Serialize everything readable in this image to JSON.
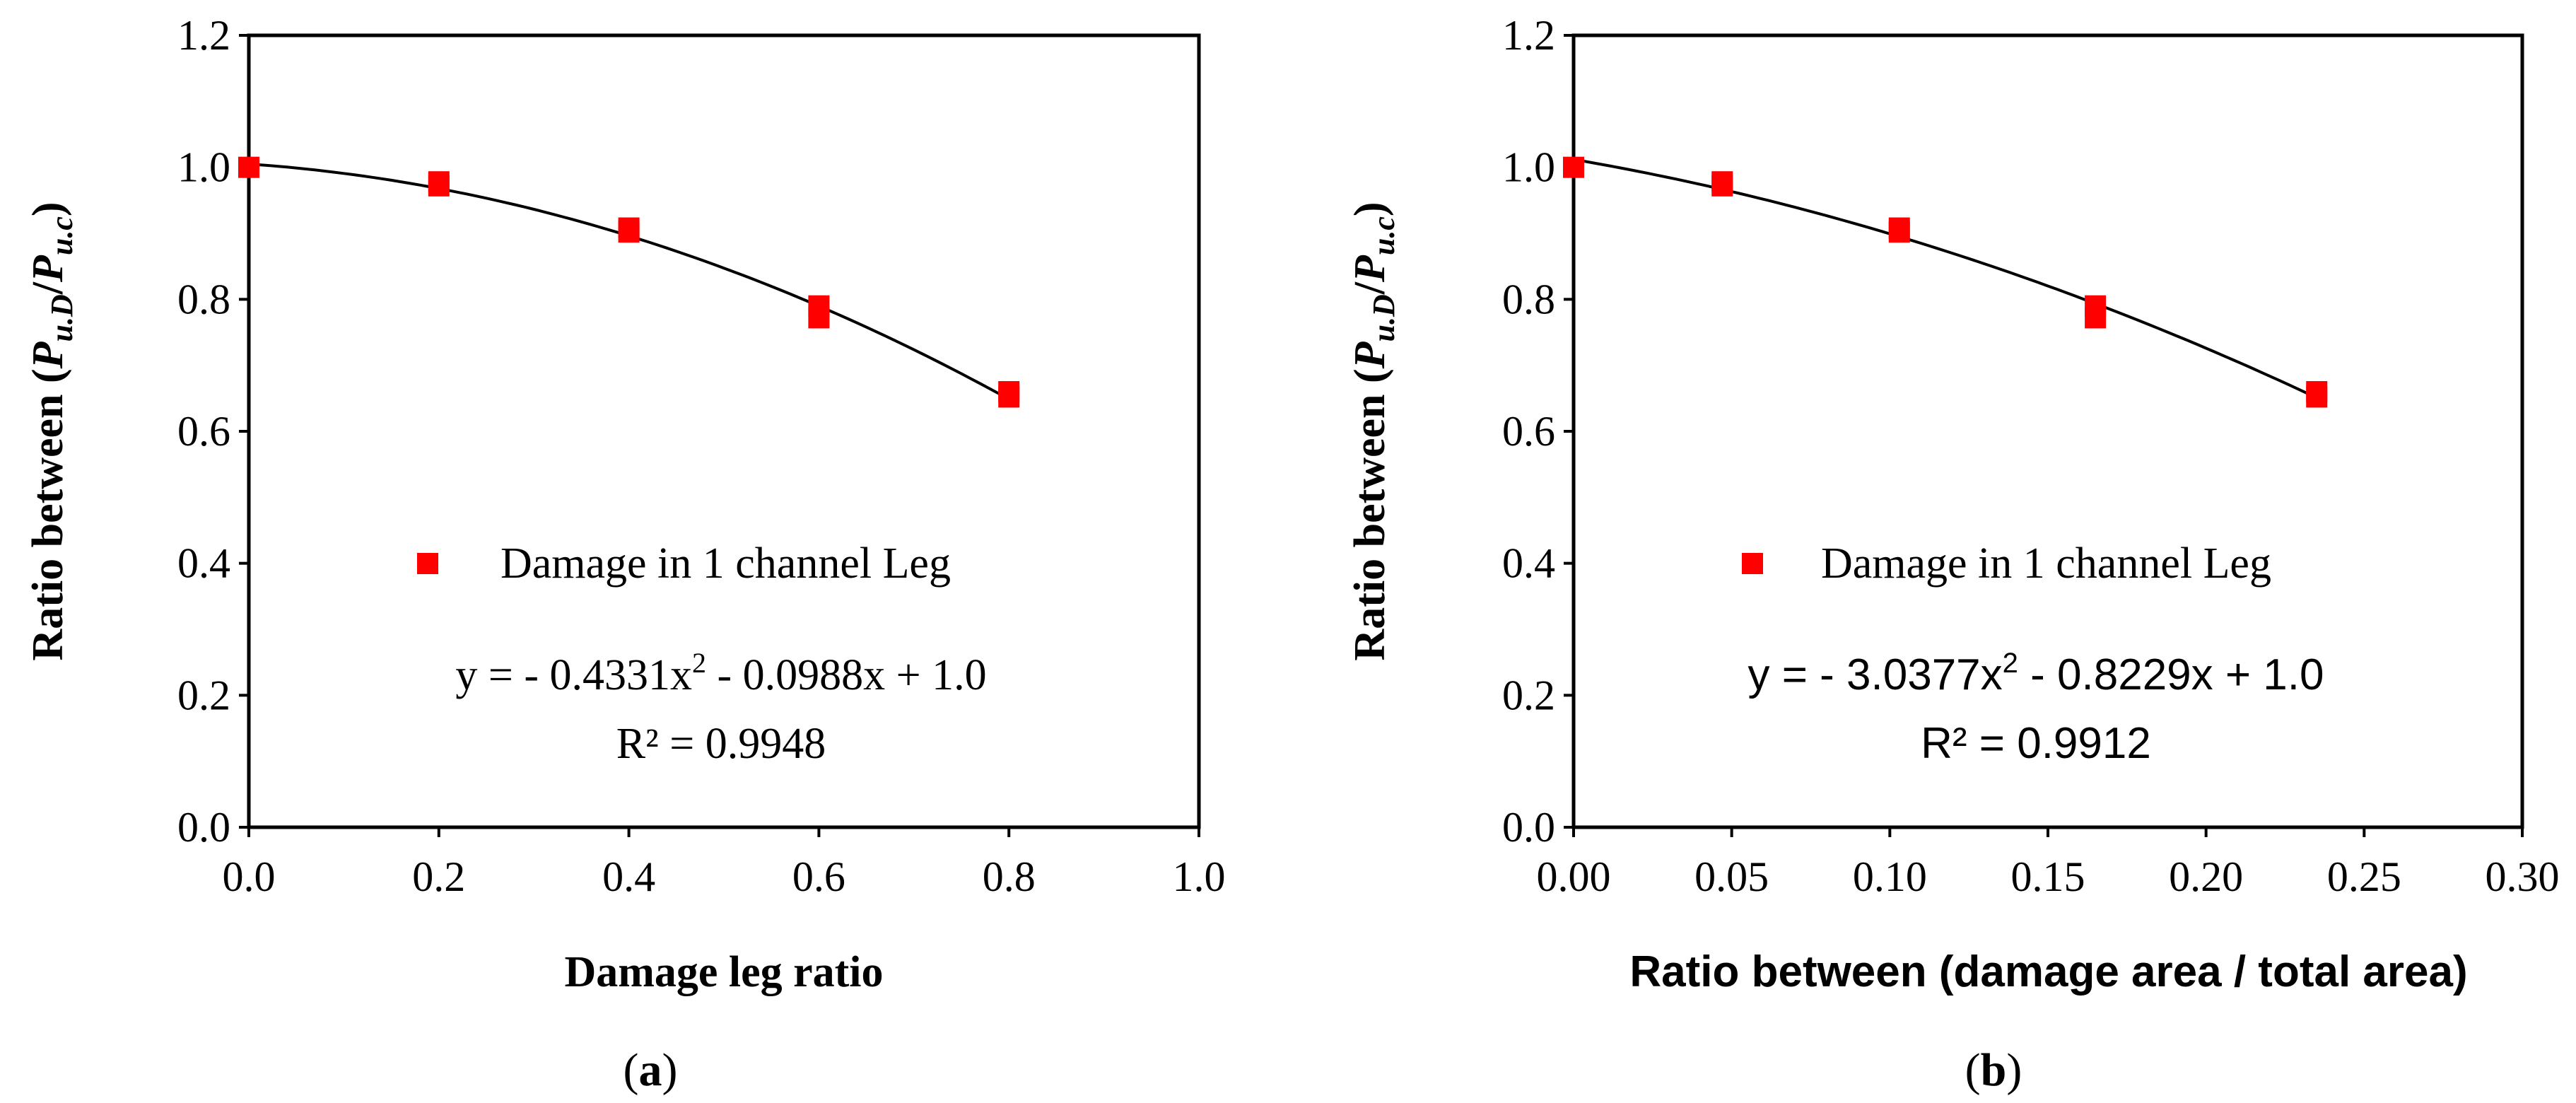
{
  "chart_data": [
    {
      "id": "a",
      "type": "scatter",
      "caption_open": "(",
      "caption_letter": "a",
      "caption_close": ")",
      "xlabel": "Damage leg ratio",
      "ylabel_prefix": "Ratio between (",
      "ylabel_P1": "P",
      "ylabel_sub1": "u.D",
      "ylabel_slash": "/",
      "ylabel_P2": "P",
      "ylabel_sub2": "u.c",
      "ylabel_suffix": ")",
      "xlim": [
        0,
        1.0
      ],
      "ylim": [
        0,
        1.2
      ],
      "xticks": [
        0,
        0.2,
        0.4,
        0.6,
        0.8,
        1.0
      ],
      "xtick_labels": [
        "0.0",
        "0.2",
        "0.4",
        "0.6",
        "0.8",
        "1.0"
      ],
      "yticks": [
        0,
        0.2,
        0.4,
        0.6,
        0.8,
        1.0,
        1.2
      ],
      "ytick_labels": [
        "0.0",
        "0.2",
        "0.4",
        "0.6",
        "0.8",
        "1.0",
        "1.2"
      ],
      "series": [
        {
          "name": "Damage in 1 channel Leg",
          "color": "#ff0000",
          "x": [
            0.0,
            0.2,
            0.2,
            0.4,
            0.4,
            0.6,
            0.6,
            0.8,
            0.8
          ],
          "y": [
            1.0,
            0.978,
            0.972,
            0.908,
            0.902,
            0.79,
            0.772,
            0.66,
            0.652
          ]
        }
      ],
      "trendline": {
        "a": -0.4331,
        "b": -0.0988,
        "c": 1.005,
        "x_range": [
          0,
          0.8
        ]
      },
      "equation_main": "y = - 0.4331x",
      "equation_exp": "2",
      "equation_rest": " - 0.0988x + 1.0",
      "r2": "R² = 0.9948",
      "equation_font": "serif"
    },
    {
      "id": "b",
      "type": "scatter",
      "caption_open": "(",
      "caption_letter": "b",
      "caption_close": ")",
      "xlabel": "Ratio between (damage area / total area)",
      "ylabel_prefix": "Ratio between (",
      "ylabel_P1": "P",
      "ylabel_sub1": "u.D",
      "ylabel_slash": "/",
      "ylabel_P2": "P",
      "ylabel_sub2": "u.c",
      "ylabel_suffix": ")",
      "xlim": [
        0,
        0.3
      ],
      "ylim": [
        0,
        1.2
      ],
      "xticks": [
        0,
        0.05,
        0.1,
        0.15,
        0.2,
        0.25,
        0.3
      ],
      "xtick_labels": [
        "0.00",
        "0.05",
        "0.10",
        "0.15",
        "0.20",
        "0.25",
        "0.30"
      ],
      "yticks": [
        0,
        0.2,
        0.4,
        0.6,
        0.8,
        1.0,
        1.2
      ],
      "ytick_labels": [
        "0.0",
        "0.2",
        "0.4",
        "0.6",
        "0.8",
        "1.0",
        "1.2"
      ],
      "series": [
        {
          "name": "Damage in 1 channel Leg",
          "color": "#ff0000",
          "x": [
            0.0,
            0.047,
            0.047,
            0.103,
            0.103,
            0.165,
            0.165,
            0.235,
            0.235
          ],
          "y": [
            1.0,
            0.978,
            0.972,
            0.908,
            0.902,
            0.79,
            0.772,
            0.66,
            0.652
          ]
        }
      ],
      "trendline": {
        "a": -3.0377,
        "b": -0.8229,
        "c": 1.012,
        "x_range": [
          0,
          0.235
        ]
      },
      "equation_main": "y = - 3.0377x",
      "equation_exp": "2",
      "equation_rest": " - 0.8229x + 1.0",
      "r2": "R² = 0.9912",
      "equation_font": "sans"
    }
  ]
}
